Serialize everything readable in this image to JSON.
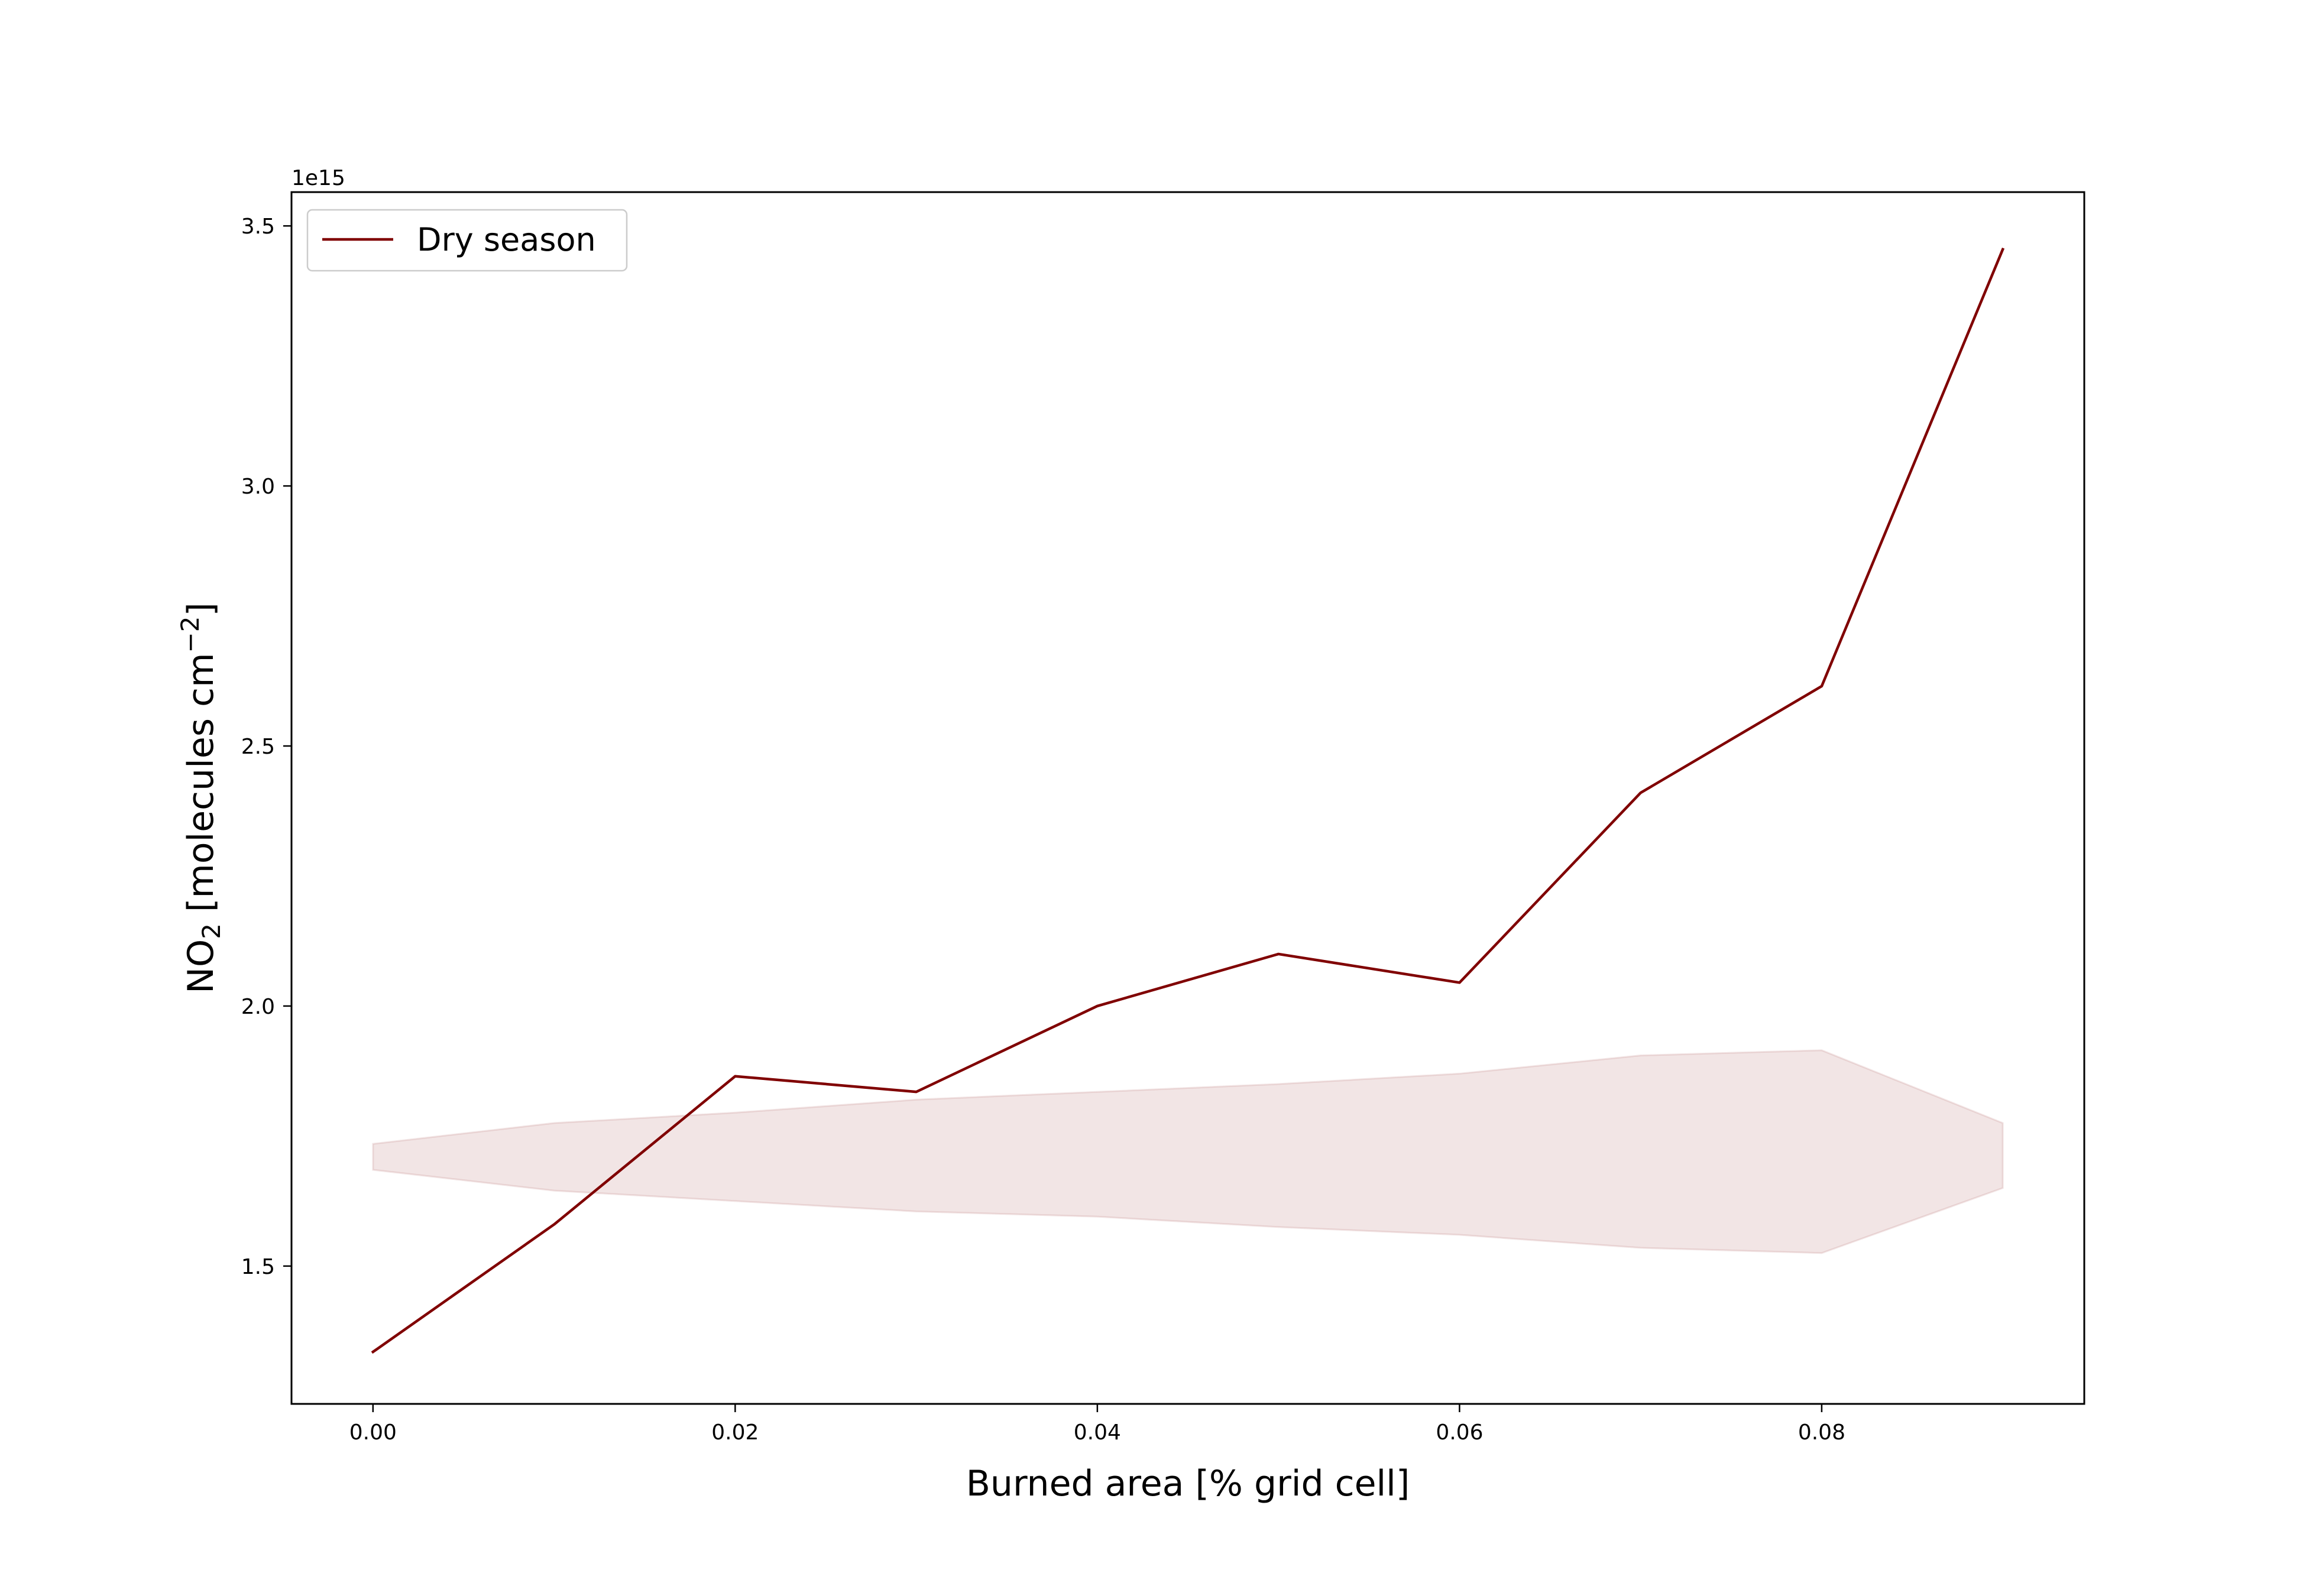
{
  "chart_data": {
    "type": "line",
    "xlabel": "Burned area [% grid cell]",
    "ylabel": "NO₂ [molecules cm⁻²]",
    "y_offset_label": "1e15",
    "y_scale_factor": 1000000000000000.0,
    "xlim": [
      -0.0045,
      0.0945
    ],
    "ylim": [
      1.235,
      3.565
    ],
    "x_ticks": [
      0.0,
      0.02,
      0.04,
      0.06,
      0.08
    ],
    "x_tick_labels": [
      "0.00",
      "0.02",
      "0.04",
      "0.06",
      "0.08"
    ],
    "y_ticks": [
      1.5,
      2.0,
      2.5,
      3.0,
      3.5
    ],
    "y_tick_labels": [
      "1.5",
      "2.0",
      "2.5",
      "3.0",
      "3.5"
    ],
    "grid": false,
    "legend_position": "top-left",
    "series": [
      {
        "name": "Dry season",
        "color": "#800000",
        "x": [
          0.0,
          0.01,
          0.02,
          0.03,
          0.04,
          0.05,
          0.06,
          0.07,
          0.08,
          0.09
        ],
        "y": [
          1.335,
          1.58,
          1.865,
          1.835,
          2.0,
          2.1,
          2.045,
          2.41,
          2.615,
          3.455
        ]
      }
    ],
    "band": {
      "color": "#800000",
      "opacity": 0.1,
      "x": [
        0.0,
        0.01,
        0.02,
        0.03,
        0.04,
        0.05,
        0.06,
        0.07,
        0.08,
        0.09
      ],
      "upper": [
        1.735,
        1.775,
        1.795,
        1.82,
        1.835,
        1.85,
        1.87,
        1.905,
        1.915,
        1.775
      ],
      "lower": [
        1.685,
        1.645,
        1.625,
        1.605,
        1.595,
        1.575,
        1.56,
        1.535,
        1.525,
        1.65
      ]
    }
  }
}
